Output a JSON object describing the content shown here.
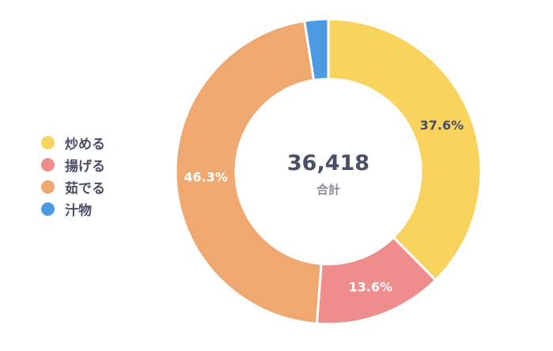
{
  "chart_data": {
    "type": "pie",
    "donut": true,
    "legend_position": "left",
    "total_value": "36,418",
    "total_label": "合計",
    "series": [
      {
        "name": "炒める",
        "value": 37.6,
        "label": "37.6%",
        "color": "#F8D35E"
      },
      {
        "name": "揚げる",
        "value": 13.6,
        "label": "13.6%",
        "color": "#EF8D8C"
      },
      {
        "name": "茹でる",
        "value": 46.3,
        "label": "46.3%",
        "color": "#F0A871"
      },
      {
        "name": "汁物",
        "value": 2.5,
        "label": "",
        "color": "#4C9BE2"
      }
    ]
  }
}
